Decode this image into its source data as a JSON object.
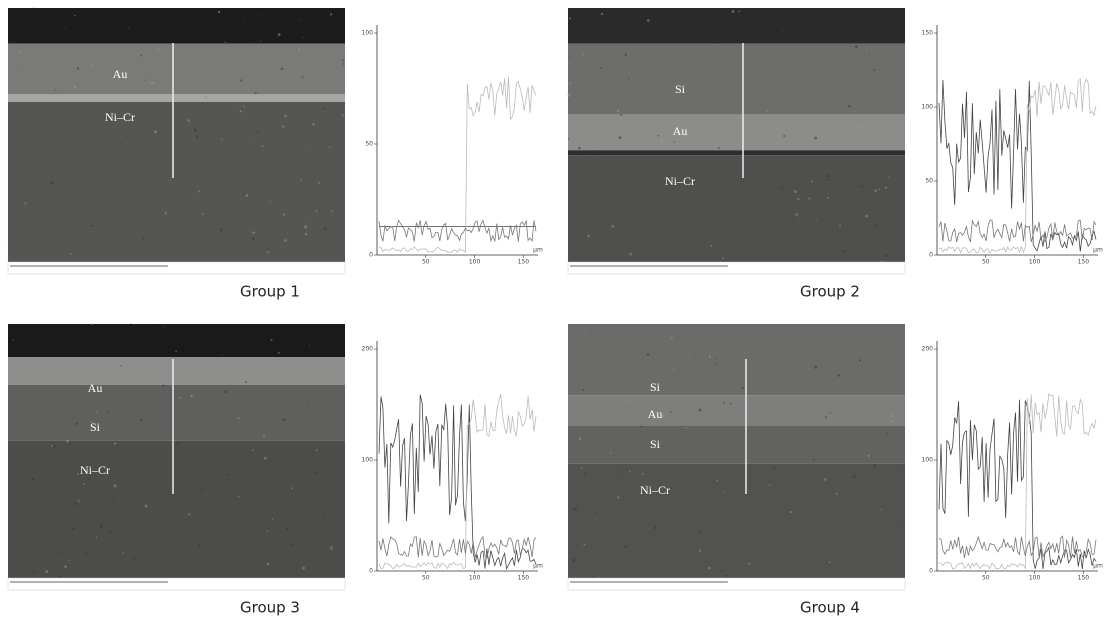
{
  "panels": [
    {
      "caption": "Group 1",
      "layers": [
        "Au",
        "Ni–Cr"
      ],
      "chart": {
        "yticks": [
          "100",
          "50",
          "0"
        ],
        "xticks": [
          "50",
          "100",
          "150"
        ],
        "unit": "µm"
      }
    },
    {
      "caption": "Group 2",
      "layers": [
        "Si",
        "Au",
        "Ni–Cr"
      ],
      "chart": {
        "yticks": [
          "150",
          "100",
          "50",
          "0"
        ],
        "xticks": [
          "50",
          "100",
          "150"
        ],
        "unit": "µm"
      }
    },
    {
      "caption": "Group 3",
      "layers": [
        "Au",
        "Si",
        "Ni–Cr"
      ],
      "chart": {
        "yticks": [
          "200",
          "100",
          "0"
        ],
        "xticks": [
          "50",
          "100",
          "150"
        ],
        "unit": "µm"
      }
    },
    {
      "caption": "Group 4",
      "layers": [
        "Si",
        "Au",
        "Si",
        "Ni–Cr"
      ],
      "chart": {
        "yticks": [
          "200",
          "100",
          "0"
        ],
        "xticks": [
          "50",
          "100",
          "150"
        ],
        "unit": "µm"
      }
    }
  ]
}
